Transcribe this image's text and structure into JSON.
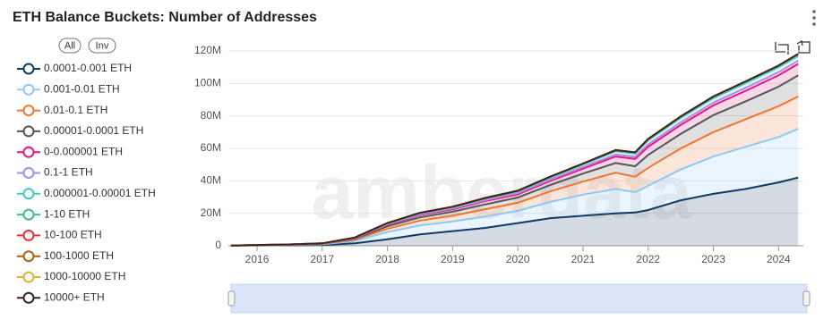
{
  "chart_data": {
    "type": "stacked-area",
    "title": "ETH Balance Buckets: Number of Addresses",
    "buttons": [
      "All",
      "Inv"
    ],
    "watermark": "amberdata",
    "x": [
      2015.6,
      2016,
      2016.5,
      2017,
      2017.5,
      2018,
      2018.5,
      2019,
      2019.5,
      2020,
      2020.5,
      2021,
      2021.5,
      2021.8,
      2022,
      2022.5,
      2023,
      2023.5,
      2024,
      2024.3
    ],
    "xlim": [
      2015.56,
      2024.38
    ],
    "xticks": [
      2016,
      2017,
      2018,
      2019,
      2020,
      2021,
      2022,
      2023,
      2024
    ],
    "ylim": [
      0,
      120000000
    ],
    "yticks": [
      0,
      {
        "value": 20000000,
        "label": "20M"
      },
      {
        "value": 40000000,
        "label": "40M"
      },
      {
        "value": 60000000,
        "label": "60M"
      },
      {
        "value": 80000000,
        "label": "80M"
      },
      {
        "value": 100000000,
        "label": "100M"
      },
      {
        "value": 120000000,
        "label": "120M"
      }
    ],
    "grid": true,
    "series": [
      {
        "name": "0.0001-0.001 ETH",
        "color": "#0e3a66",
        "values": [
          100000,
          200000,
          300000,
          500000,
          1500000,
          4000000,
          7000000,
          9000000,
          11000000,
          14000000,
          17000000,
          18500000,
          20000000,
          20500000,
          22000000,
          28000000,
          32000000,
          35000000,
          39000000,
          42000000
        ]
      },
      {
        "name": "0.001-0.01 ETH",
        "color": "#8ec9f5",
        "values": [
          50000,
          100000,
          200000,
          400000,
          1500000,
          4500000,
          5500000,
          6000000,
          7000000,
          7500000,
          10000000,
          13000000,
          15000000,
          12500000,
          15000000,
          19000000,
          23000000,
          26000000,
          28000000,
          30000000
        ]
      },
      {
        "name": "0.01-0.1 ETH",
        "color": "#f07630",
        "values": [
          20000,
          100000,
          100000,
          200000,
          800000,
          2000000,
          3000000,
          3500000,
          4500000,
          5000000,
          6500000,
          8000000,
          10000000,
          9500000,
          11000000,
          13000000,
          15000000,
          17000000,
          19000000,
          20000000
        ]
      },
      {
        "name": "0.00001-0.0001 ETH",
        "color": "#555555",
        "values": [
          10000,
          50000,
          100000,
          200000,
          600000,
          1500000,
          2000000,
          2500000,
          3000000,
          3200000,
          4000000,
          5000000,
          6000000,
          6500000,
          8000000,
          9000000,
          10500000,
          11000000,
          12000000,
          13000000
        ]
      },
      {
        "name": "0-0.000001 ETH",
        "color": "#e8157e",
        "values": [
          10000,
          30000,
          50000,
          100000,
          300000,
          1000000,
          1500000,
          1500000,
          2000000,
          2000000,
          2500000,
          3000000,
          4000000,
          4500000,
          5000000,
          5500000,
          6000000,
          6500000,
          7000000,
          7000000
        ]
      },
      {
        "name": "0.1-1 ETH",
        "color": "#a98ee8",
        "values": [
          0,
          10000,
          20000,
          50000,
          100000,
          300000,
          400000,
          500000,
          600000,
          700000,
          800000,
          1000000,
          1200000,
          1300000,
          1500000,
          1600000,
          1700000,
          1800000,
          1900000,
          2000000
        ]
      },
      {
        "name": "0.000001-0.00001 ETH",
        "color": "#43c9c4",
        "values": [
          0,
          10000,
          20000,
          30000,
          200000,
          500000,
          600000,
          700000,
          900000,
          1000000,
          1200000,
          1500000,
          2000000,
          2000000,
          2500000,
          2700000,
          2800000,
          3000000,
          3000000,
          3000000
        ]
      },
      {
        "name": "1-10 ETH",
        "color": "#3cc47a",
        "values": [
          0,
          0,
          10000,
          20000,
          50000,
          150000,
          200000,
          250000,
          300000,
          350000,
          400000,
          450000,
          500000,
          500000,
          550000,
          600000,
          650000,
          700000,
          750000,
          800000
        ]
      },
      {
        "name": "10-100 ETH",
        "color": "#e8322f",
        "values": [
          0,
          0,
          0,
          10000,
          20000,
          50000,
          80000,
          100000,
          120000,
          140000,
          160000,
          180000,
          200000,
          200000,
          220000,
          240000,
          260000,
          280000,
          290000,
          300000
        ]
      },
      {
        "name": "100-1000 ETH",
        "color": "#a8620f",
        "values": [
          0,
          0,
          0,
          0,
          5000,
          10000,
          15000,
          20000,
          22000,
          25000,
          28000,
          30000,
          33000,
          35000,
          37000,
          40000,
          42000,
          45000,
          48000,
          50000
        ]
      },
      {
        "name": "1000-10000 ETH",
        "color": "#e3b22a",
        "values": [
          0,
          0,
          0,
          0,
          1000,
          2000,
          3000,
          4000,
          4000,
          4500,
          5000,
          5000,
          5500,
          5500,
          6000,
          6000,
          6500,
          6500,
          7000,
          7000
        ]
      },
      {
        "name": "10000+ ETH",
        "color": "#3a2424",
        "values": [
          0,
          0,
          0,
          0,
          100,
          200,
          300,
          300,
          400,
          400,
          400,
          500,
          500,
          500,
          500,
          600,
          600,
          600,
          600,
          600
        ]
      }
    ]
  }
}
